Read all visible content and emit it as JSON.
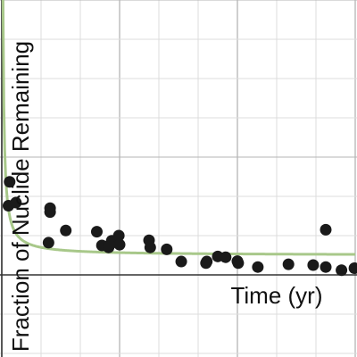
{
  "chart_data": {
    "type": "scatter",
    "title": "",
    "xlabel": "Time (yr)",
    "ylabel": "Fraction of Nuclide Remaining",
    "xlim": [
      0,
      9
    ],
    "ylim": [
      -0.2,
      0.7
    ],
    "grid": true,
    "series": [
      {
        "kind": "points",
        "color": "#1a1a1a",
        "points": [
          [
            0.2,
            0.237
          ],
          [
            0.17,
            0.176
          ],
          [
            0.36,
            0.184
          ],
          [
            1.23,
            0.17
          ],
          [
            1.23,
            0.16
          ],
          [
            1.19,
            0.082
          ],
          [
            1.63,
            0.113
          ],
          [
            2.42,
            0.11
          ],
          [
            2.55,
            0.075
          ],
          [
            2.72,
            0.07
          ],
          [
            2.8,
            0.087
          ],
          [
            2.98,
            0.1
          ],
          [
            2.74,
            0.075
          ],
          [
            3.0,
            0.077
          ],
          [
            3.75,
            0.088
          ],
          [
            3.78,
            0.07
          ],
          [
            4.2,
            0.065
          ],
          [
            4.57,
            0.034
          ],
          [
            5.22,
            0.034
          ],
          [
            5.2,
            0.03
          ],
          [
            5.5,
            0.047
          ],
          [
            5.7,
            0.045
          ],
          [
            6.0,
            0.035
          ],
          [
            6.02,
            0.03
          ],
          [
            6.52,
            0.02
          ],
          [
            7.3,
            0.027
          ],
          [
            7.93,
            0.025
          ],
          [
            8.25,
            0.115
          ],
          [
            8.25,
            0.02
          ],
          [
            8.65,
            0.012
          ],
          [
            8.98,
            0.017
          ]
        ]
      },
      {
        "kind": "fit-curve",
        "color": "#a8c88a",
        "equation": "y = 0.05 + 0.02 / x"
      }
    ]
  }
}
